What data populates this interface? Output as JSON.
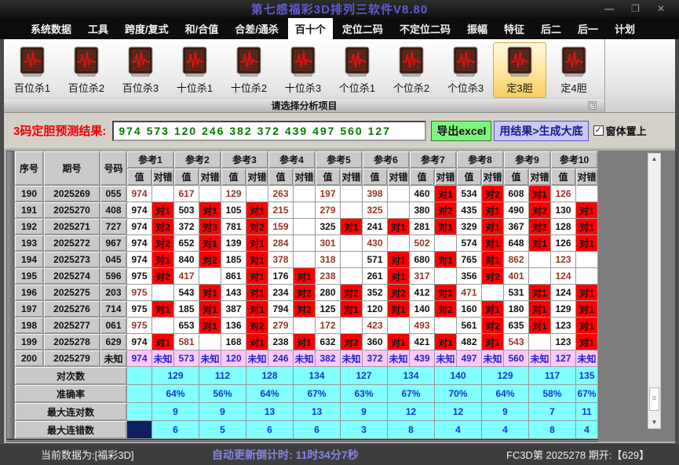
{
  "window": {
    "title": "第七感福彩3D排列三软件V8.80"
  },
  "titlebar": {
    "minimize": "—",
    "restore": "❐",
    "close": "✕"
  },
  "menu": {
    "items": [
      "系统数据",
      "工具",
      "跨度/复式",
      "和/合值",
      "合差/通杀",
      "百十个",
      "定位二码",
      "不定位二码",
      "振幅",
      "特征",
      "后二",
      "后一",
      "计划"
    ],
    "selected": "百十个"
  },
  "toolbar": {
    "buttons": [
      "百位杀1",
      "百位杀2",
      "百位杀3",
      "十位杀1",
      "十位杀2",
      "十位杀3",
      "个位杀1",
      "个位杀2",
      "个位杀3",
      "定3胆",
      "定4胆"
    ],
    "selected": "定3胆",
    "caption": "请选择分析项目"
  },
  "prediction": {
    "label": "3码定胆预测结果:",
    "value": "974 573 120 246 382 372 439 497 560 127",
    "export_button": "导出excel",
    "generate_button": "用结果>生成大底",
    "checkbox_label": "窗体置上",
    "checkbox_checked": true
  },
  "table": {
    "headers": {
      "seq": "序号",
      "period": "期号",
      "number": "号码",
      "value": "值",
      "mark": "对错",
      "ref_prefix": "参考",
      "ref_count": 10
    },
    "rows": [
      {
        "seq": "190",
        "period": "2025269",
        "number": "055",
        "refs": [
          [
            "974",
            ""
          ],
          [
            "617",
            ""
          ],
          [
            "129",
            ""
          ],
          [
            "263",
            ""
          ],
          [
            "197",
            ""
          ],
          [
            "398",
            ""
          ],
          [
            "460",
            "对1"
          ],
          [
            "534",
            "对2"
          ],
          [
            "608",
            "对1"
          ],
          [
            "126",
            ""
          ]
        ]
      },
      {
        "seq": "191",
        "period": "2025270",
        "number": "408",
        "refs": [
          [
            "974",
            "对1"
          ],
          [
            "503",
            "对1"
          ],
          [
            "105",
            "对1"
          ],
          [
            "215",
            ""
          ],
          [
            "279",
            ""
          ],
          [
            "325",
            ""
          ],
          [
            "380",
            "对2"
          ],
          [
            "435",
            "对1"
          ],
          [
            "490",
            "对2"
          ],
          [
            "130",
            "对1"
          ]
        ]
      },
      {
        "seq": "192",
        "period": "2025271",
        "number": "727",
        "refs": [
          [
            "974",
            "对2"
          ],
          [
            "372",
            "对3"
          ],
          [
            "781",
            "对2"
          ],
          [
            "159",
            ""
          ],
          [
            "325",
            "对1"
          ],
          [
            "241",
            "对1"
          ],
          [
            "281",
            "对1"
          ],
          [
            "329",
            "对1"
          ],
          [
            "367",
            "对2"
          ],
          [
            "128",
            "对1"
          ]
        ]
      },
      {
        "seq": "193",
        "period": "2025272",
        "number": "967",
        "refs": [
          [
            "974",
            "对2"
          ],
          [
            "652",
            "对1"
          ],
          [
            "139",
            "对1"
          ],
          [
            "284",
            ""
          ],
          [
            "301",
            ""
          ],
          [
            "430",
            ""
          ],
          [
            "502",
            ""
          ],
          [
            "574",
            "对1"
          ],
          [
            "648",
            "对1"
          ],
          [
            "126",
            "对1"
          ]
        ]
      },
      {
        "seq": "194",
        "period": "2025273",
        "number": "045",
        "refs": [
          [
            "974",
            "对1"
          ],
          [
            "840",
            "对2"
          ],
          [
            "185",
            "对1"
          ],
          [
            "378",
            ""
          ],
          [
            "318",
            ""
          ],
          [
            "571",
            "对1"
          ],
          [
            "680",
            "对1"
          ],
          [
            "765",
            "对1"
          ],
          [
            "862",
            ""
          ],
          [
            "123",
            ""
          ]
        ]
      },
      {
        "seq": "195",
        "period": "2025274",
        "number": "596",
        "refs": [
          [
            "975",
            "对2"
          ],
          [
            "417",
            ""
          ],
          [
            "861",
            "对1"
          ],
          [
            "176",
            "对1"
          ],
          [
            "238",
            ""
          ],
          [
            "261",
            "对1"
          ],
          [
            "317",
            ""
          ],
          [
            "356",
            "对2"
          ],
          [
            "401",
            ""
          ],
          [
            "124",
            ""
          ]
        ]
      },
      {
        "seq": "196",
        "period": "2025275",
        "number": "203",
        "refs": [
          [
            "975",
            ""
          ],
          [
            "543",
            "对1"
          ],
          [
            "143",
            "对1"
          ],
          [
            "234",
            "对2"
          ],
          [
            "280",
            "对2"
          ],
          [
            "352",
            "对2"
          ],
          [
            "412",
            "对1"
          ],
          [
            "471",
            ""
          ],
          [
            "531",
            "对1"
          ],
          [
            "124",
            "对1"
          ]
        ]
      },
      {
        "seq": "197",
        "period": "2025276",
        "number": "714",
        "refs": [
          [
            "975",
            "对1"
          ],
          [
            "185",
            "对1"
          ],
          [
            "387",
            "对1"
          ],
          [
            "794",
            "对2"
          ],
          [
            "125",
            "对1"
          ],
          [
            "120",
            "对1"
          ],
          [
            "140",
            "对2"
          ],
          [
            "160",
            "对1"
          ],
          [
            "180",
            "对1"
          ],
          [
            "129",
            "对1"
          ]
        ]
      },
      {
        "seq": "198",
        "period": "2025277",
        "number": "061",
        "refs": [
          [
            "975",
            ""
          ],
          [
            "653",
            "对1"
          ],
          [
            "136",
            "对2"
          ],
          [
            "279",
            ""
          ],
          [
            "172",
            ""
          ],
          [
            "423",
            ""
          ],
          [
            "493",
            ""
          ],
          [
            "561",
            "对2"
          ],
          [
            "635",
            "对1"
          ],
          [
            "123",
            "对1"
          ]
        ]
      },
      {
        "seq": "199",
        "period": "2025278",
        "number": "629",
        "refs": [
          [
            "974",
            "对1"
          ],
          [
            "581",
            ""
          ],
          [
            "168",
            "对1"
          ],
          [
            "238",
            "对1"
          ],
          [
            "632",
            "对2"
          ],
          [
            "360",
            "对1"
          ],
          [
            "421",
            "对1"
          ],
          [
            "482",
            "对1"
          ],
          [
            "543",
            ""
          ],
          [
            "123",
            "对1"
          ]
        ]
      },
      {
        "seq": "200",
        "period": "2025279",
        "number": "未知",
        "unknown": true,
        "refs": [
          [
            "974",
            "未知"
          ],
          [
            "573",
            "未知"
          ],
          [
            "120",
            "未知"
          ],
          [
            "246",
            "未知"
          ],
          [
            "382",
            "未知"
          ],
          [
            "372",
            "未知"
          ],
          [
            "439",
            "未知"
          ],
          [
            "497",
            "未知"
          ],
          [
            "560",
            "未知"
          ],
          [
            "127",
            "未知"
          ]
        ]
      }
    ],
    "summary": [
      {
        "label": "对次数",
        "values": [
          "129",
          "112",
          "128",
          "134",
          "127",
          "134",
          "140",
          "129",
          "117",
          "135"
        ]
      },
      {
        "label": "准确率",
        "values": [
          "64%",
          "56%",
          "64%",
          "67%",
          "63%",
          "67%",
          "70%",
          "64%",
          "58%",
          "67%"
        ]
      },
      {
        "label": "最大连对数",
        "values": [
          "9",
          "9",
          "13",
          "13",
          "9",
          "12",
          "12",
          "9",
          "7",
          "11"
        ]
      },
      {
        "label": "最大连错数",
        "values": [
          "6",
          "5",
          "6",
          "6",
          "3",
          "8",
          "4",
          "4",
          "8",
          "4"
        ],
        "navy_first": true
      }
    ]
  },
  "statusbar": {
    "left": "当前数据为:[福彩3D]",
    "center": "自动更新倒计时:  11时34分7秒",
    "right": "FC3D第 2025278 期开:【629】"
  },
  "icons": {
    "up_arrow": "▲",
    "down_arrow": "▼",
    "check": "✓",
    "grip": "◳"
  },
  "colors": {
    "mark_hit_bg": "#fe0000",
    "value_miss": "#9a3324",
    "unknown_bg": "#ffc8fc",
    "summary_bg": "#82ffff",
    "summary_text": "#1536d8",
    "input_text": "#007a00",
    "excel_btn_bg": "#7df57d",
    "generate_btn_bg": "#c9c9f4",
    "status_center_text": "#8585e6",
    "title_text": "#5d5dd0",
    "selected_tool_bg": "#ffe9a6"
  }
}
